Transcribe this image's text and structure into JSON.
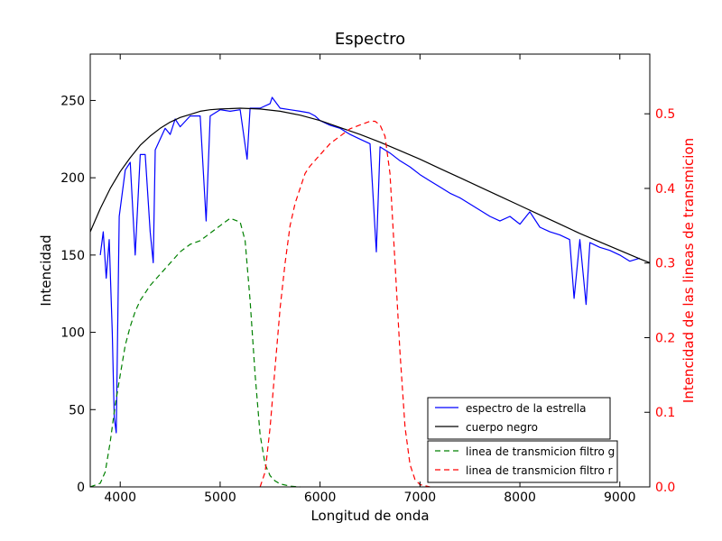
{
  "chart_data": {
    "type": "line",
    "title": "Espectro",
    "xlabel": "Longitud de onda",
    "ylabel": "Intencidad",
    "y2label": "Intencidad de las lineas de transmicion",
    "xlim": [
      3700,
      9300
    ],
    "ylim": [
      0,
      280
    ],
    "y2lim": [
      0.0,
      0.58
    ],
    "xticks": [
      4000,
      5000,
      6000,
      7000,
      8000,
      9000
    ],
    "yticks": [
      0,
      50,
      100,
      150,
      200,
      250
    ],
    "y2ticks": [
      0.0,
      0.1,
      0.2,
      0.3,
      0.4,
      0.5
    ],
    "y2tick_labels": [
      "0.0",
      "0.1",
      "0.2",
      "0.3",
      "0.4",
      "0.5"
    ],
    "colors": {
      "spectrum": "#0000ff",
      "blackbody": "#000000",
      "filter_g": "#008000",
      "filter_r": "#ff0000",
      "right_axis": "#ff0000"
    },
    "series": [
      {
        "name": "espectro de la estrella",
        "axis": "left",
        "style": "solid",
        "color": "#0000ff",
        "x": [
          3800,
          3830,
          3860,
          3890,
          3920,
          3940,
          3960,
          3990,
          4050,
          4100,
          4150,
          4200,
          4250,
          4300,
          4330,
          4350,
          4400,
          4450,
          4500,
          4550,
          4600,
          4700,
          4800,
          4860,
          4900,
          5000,
          5100,
          5200,
          5270,
          5300,
          5400,
          5500,
          5520,
          5600,
          5700,
          5800,
          5890,
          5950,
          6000,
          6100,
          6200,
          6300,
          6400,
          6500,
          6563,
          6600,
          6700,
          6800,
          6900,
          7000,
          7100,
          7200,
          7300,
          7400,
          7500,
          7600,
          7700,
          7800,
          7900,
          8000,
          8100,
          8200,
          8300,
          8400,
          8498,
          8542,
          8600,
          8662,
          8700,
          8800,
          8900,
          9000,
          9100,
          9200
        ],
        "y": [
          150,
          165,
          135,
          160,
          100,
          45,
          35,
          175,
          205,
          210,
          150,
          215,
          215,
          165,
          145,
          218,
          225,
          232,
          228,
          238,
          233,
          240,
          240,
          172,
          240,
          244,
          243,
          244,
          212,
          245,
          245,
          248,
          252,
          245,
          244,
          243,
          242,
          240,
          237,
          234,
          232,
          228,
          225,
          222,
          152,
          220,
          216,
          211,
          207,
          202,
          198,
          194,
          190,
          187,
          183,
          179,
          175,
          172,
          175,
          170,
          178,
          168,
          165,
          163,
          160,
          122,
          160,
          118,
          158,
          155,
          153,
          150,
          146,
          148
        ]
      },
      {
        "name": "cuerpo negro",
        "axis": "left",
        "style": "solid",
        "color": "#000000",
        "x": [
          3700,
          3800,
          3900,
          4000,
          4100,
          4200,
          4300,
          4400,
          4500,
          4600,
          4700,
          4800,
          4900,
          5000,
          5200,
          5400,
          5600,
          5800,
          6000,
          6200,
          6400,
          6600,
          6800,
          7000,
          7200,
          7400,
          7600,
          7800,
          8000,
          8200,
          8400,
          8600,
          8800,
          9000,
          9200,
          9300
        ],
        "y": [
          165,
          180,
          193,
          204,
          213,
          221,
          227,
          232,
          236,
          239,
          241,
          243,
          244,
          244.5,
          245,
          244.5,
          243,
          240.5,
          237,
          232.5,
          228,
          223,
          217.5,
          212,
          206,
          200,
          194,
          188,
          182,
          176,
          170,
          164,
          158.5,
          153,
          147.5,
          145
        ]
      },
      {
        "name": "linea de transmicion filtro g",
        "axis": "right",
        "style": "dashed",
        "color": "#008000",
        "x": [
          3700,
          3800,
          3850,
          3900,
          3950,
          4000,
          4050,
          4100,
          4150,
          4200,
          4300,
          4400,
          4500,
          4600,
          4700,
          4800,
          4900,
          5000,
          5100,
          5200,
          5250,
          5300,
          5350,
          5400,
          5450,
          5500,
          5550,
          5600,
          5700,
          5800
        ],
        "y": [
          0.0,
          0.005,
          0.02,
          0.06,
          0.11,
          0.15,
          0.19,
          0.215,
          0.235,
          0.25,
          0.27,
          0.285,
          0.3,
          0.315,
          0.325,
          0.33,
          0.34,
          0.35,
          0.36,
          0.355,
          0.33,
          0.25,
          0.15,
          0.07,
          0.03,
          0.015,
          0.008,
          0.004,
          0.001,
          0.0
        ]
      },
      {
        "name": "linea de transmicion filtro r",
        "axis": "right",
        "style": "dashed",
        "color": "#ff0000",
        "x": [
          5400,
          5450,
          5500,
          5550,
          5600,
          5650,
          5700,
          5750,
          5800,
          5850,
          5900,
          6000,
          6100,
          6200,
          6300,
          6400,
          6500,
          6550,
          6600,
          6650,
          6700,
          6750,
          6800,
          6850,
          6900,
          6950,
          7000,
          7100
        ],
        "y": [
          0.0,
          0.02,
          0.08,
          0.16,
          0.24,
          0.3,
          0.35,
          0.38,
          0.4,
          0.42,
          0.43,
          0.445,
          0.46,
          0.47,
          0.48,
          0.485,
          0.49,
          0.49,
          0.485,
          0.47,
          0.42,
          0.3,
          0.18,
          0.08,
          0.03,
          0.01,
          0.003,
          0.0
        ]
      }
    ],
    "legends": [
      {
        "placement": "lower-right",
        "entries": [
          "espectro de la estrella",
          "cuerpo negro"
        ]
      },
      {
        "placement": "bottom-right",
        "entries": [
          "linea de transmicion filtro g",
          "linea de transmicion filtro r"
        ]
      }
    ]
  }
}
